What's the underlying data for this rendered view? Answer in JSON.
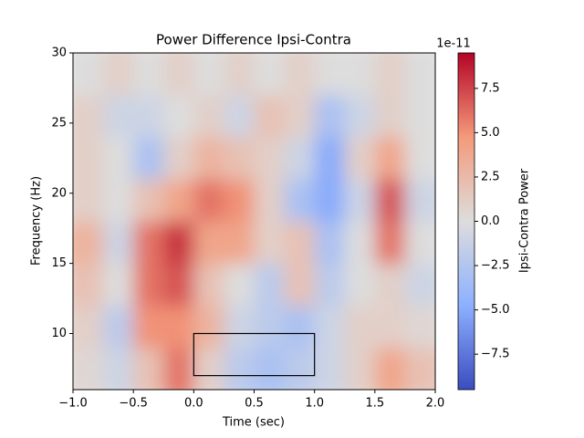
{
  "chart_data": {
    "type": "heatmap",
    "title": "Power Difference Ipsi-Contra",
    "x_label": "Time (sec)",
    "y_label": "Frequency (Hz)",
    "xlim": [
      -1,
      2
    ],
    "ylim": [
      6,
      30
    ],
    "xticks": [
      {
        "value": -1,
        "label": "−1.0"
      },
      {
        "value": -0.5,
        "label": "−0.5"
      },
      {
        "value": 0,
        "label": "0.0"
      },
      {
        "value": 0.5,
        "label": "0.5"
      },
      {
        "value": 1,
        "label": "1.0"
      },
      {
        "value": 1.5,
        "label": "1.5"
      },
      {
        "value": 2,
        "label": "2.0"
      }
    ],
    "yticks": [
      10,
      15,
      20,
      25,
      30
    ],
    "xbins": [
      -1,
      -0.75,
      -0.5,
      -0.25,
      0,
      0.25,
      0.5,
      0.75,
      1,
      1.25,
      1.5,
      1.75,
      2
    ],
    "ybins": [
      6,
      9,
      12,
      15,
      18,
      21,
      24,
      27,
      30
    ],
    "z": [
      [
        0.5,
        -1,
        2,
        6,
        1,
        -2,
        -3,
        -2,
        -1,
        1,
        4,
        2
      ],
      [
        1,
        -2,
        5,
        5,
        3,
        -1,
        -2,
        -3,
        -1,
        1,
        1,
        0.5
      ],
      [
        2,
        0,
        6,
        7,
        2,
        0,
        -2,
        2,
        -2,
        0,
        1,
        -1
      ],
      [
        3,
        -1,
        6,
        8,
        4,
        4,
        1,
        2,
        -3,
        0,
        6,
        0
      ],
      [
        1,
        0,
        2,
        4,
        6,
        5,
        1,
        -3,
        -5,
        -1,
        7,
        -1
      ],
      [
        1,
        0,
        -3,
        1,
        3,
        2,
        1,
        -1,
        -5,
        1,
        4,
        0
      ],
      [
        1,
        -1,
        -1,
        0,
        1,
        -1,
        2,
        1,
        -3,
        -1,
        1,
        0
      ],
      [
        0,
        1,
        0,
        1,
        0,
        1,
        0,
        1,
        0,
        0,
        1,
        0
      ]
    ],
    "colormap": [
      "#3b4cc0",
      "#8db0fe",
      "#dddddd",
      "#f49a7b",
      "#b40426"
    ],
    "colorbar_label": "Ipsi-Contra Power",
    "colorbar_offset": "1e-11",
    "clim": [
      -9.5,
      9.5
    ],
    "cticks": [
      {
        "value": -7.5,
        "label": "−7.5"
      },
      {
        "value": -5,
        "label": "−5.0"
      },
      {
        "value": -2.5,
        "label": "−2.5"
      },
      {
        "value": 0,
        "label": "0.0"
      },
      {
        "value": 2.5,
        "label": "2.5"
      },
      {
        "value": 5,
        "label": "5.0"
      },
      {
        "value": 7.5,
        "label": "7.5"
      }
    ],
    "annotation_box": {
      "x": [
        0,
        1
      ],
      "y": [
        7,
        10
      ]
    }
  }
}
